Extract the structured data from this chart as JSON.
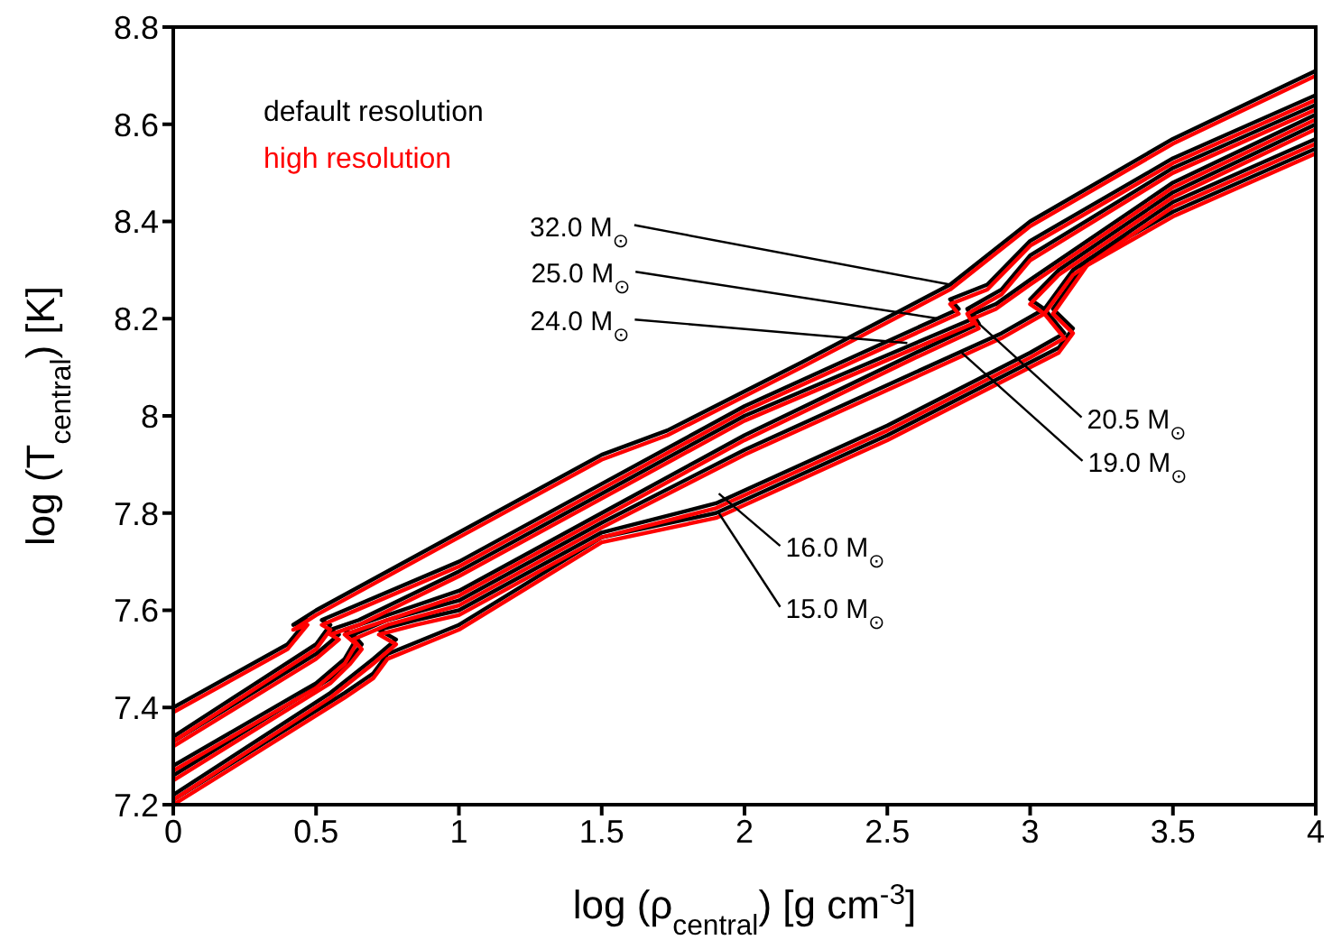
{
  "chart_data": {
    "type": "line",
    "xlabel": "log (ρ$_{central}$) [g cm$^{-3}$]",
    "ylabel": "log (T$_{central}$) [K]",
    "xlim": [
      0,
      4
    ],
    "xticks": [
      0,
      0.5,
      1,
      1.5,
      2,
      2.5,
      3,
      3.5,
      4
    ],
    "ylim": [
      7.2,
      8.8
    ],
    "yticks": [
      7.2,
      7.4,
      7.6,
      7.8,
      8,
      8.2,
      8.4,
      8.6,
      8.8
    ],
    "legend": "top left",
    "marker": "none",
    "line_style": "solid",
    "series": [
      {
        "name": "default resolution",
        "color": "#000000",
        "x": [
          0,
          0.4,
          0.47,
          0.42,
          0.5,
          1.0,
          1.5,
          1.73,
          2.2,
          2.72,
          3.0,
          3.5,
          4.0
        ],
        "values": [
          7.4,
          7.53,
          7.58,
          7.57,
          7.6,
          7.76,
          7.92,
          7.97,
          8.11,
          8.27,
          8.4,
          8.57,
          8.71
        ]
      },
      {
        "color": "#000000",
        "x": [
          0,
          0.5,
          0.55,
          0.52,
          0.6,
          1.0,
          1.5,
          2.0,
          2.75,
          2.72,
          2.85,
          3.0,
          3.5,
          4.0
        ],
        "values": [
          7.34,
          7.53,
          7.57,
          7.58,
          7.6,
          7.7,
          7.86,
          8.02,
          8.22,
          8.24,
          8.27,
          8.36,
          8.53,
          8.66
        ]
      },
      {
        "color": "#000000",
        "x": [
          0,
          0.5,
          0.58,
          0.55,
          0.65,
          1.0,
          1.5,
          2.0,
          2.8,
          2.78,
          2.9,
          3.0,
          3.5,
          4.0
        ],
        "values": [
          7.33,
          7.51,
          7.55,
          7.56,
          7.58,
          7.68,
          7.84,
          8.0,
          8.2,
          8.22,
          8.26,
          8.33,
          8.51,
          8.64
        ]
      },
      {
        "color": "#000000",
        "x": [
          0,
          0.5,
          0.6,
          0.64,
          0.6,
          0.7,
          1.0,
          1.5,
          2.0,
          2.6,
          2.82,
          2.8,
          2.88,
          3.0,
          3.5,
          4.0
        ],
        "values": [
          7.28,
          7.45,
          7.5,
          7.54,
          7.56,
          7.58,
          7.64,
          7.8,
          7.96,
          8.13,
          8.19,
          8.21,
          8.23,
          8.28,
          8.48,
          8.62
        ]
      },
      {
        "color": "#000000",
        "x": [
          0,
          0.55,
          0.62,
          0.66,
          0.63,
          0.75,
          1.0,
          1.5,
          2.0,
          2.6,
          2.9,
          3.05,
          3.0,
          3.1,
          3.5,
          4.0
        ],
        "values": [
          7.26,
          7.46,
          7.5,
          7.53,
          7.55,
          7.58,
          7.62,
          7.78,
          7.93,
          8.09,
          8.17,
          8.22,
          8.24,
          8.3,
          8.46,
          8.6
        ]
      },
      {
        "color": "#000000",
        "x": [
          0,
          0.55,
          0.7,
          0.78,
          0.72,
          0.85,
          1.0,
          1.5,
          1.9,
          2.5,
          3.0,
          3.12,
          3.05,
          3.15,
          3.5,
          4.0
        ],
        "values": [
          7.22,
          7.43,
          7.5,
          7.54,
          7.56,
          7.58,
          7.6,
          7.76,
          7.82,
          7.98,
          8.13,
          8.17,
          8.22,
          8.3,
          8.44,
          8.57
        ]
      },
      {
        "color": "#000000",
        "x": [
          0,
          0.6,
          0.7,
          0.75,
          1.0,
          1.5,
          1.9,
          2.5,
          3.1,
          3.15,
          3.08,
          3.2,
          3.5,
          4.0
        ],
        "values": [
          7.21,
          7.43,
          7.47,
          7.51,
          7.57,
          7.75,
          7.8,
          7.96,
          8.14,
          8.18,
          8.22,
          8.32,
          8.42,
          8.55
        ]
      },
      {
        "name": "high resolution",
        "color": "#ff0000",
        "x": [
          0,
          0.4,
          0.47,
          0.42,
          0.5,
          1.0,
          1.5,
          1.73,
          2.2,
          2.72,
          3.0,
          3.5,
          4.0
        ],
        "values": [
          7.39,
          7.52,
          7.57,
          7.56,
          7.59,
          7.75,
          7.91,
          7.96,
          8.1,
          8.26,
          8.39,
          8.56,
          8.7
        ]
      },
      {
        "color": "#ff0000",
        "x": [
          0,
          0.5,
          0.55,
          0.52,
          0.6,
          1.0,
          1.5,
          2.0,
          2.75,
          2.72,
          2.85,
          3.0,
          3.5,
          4.0
        ],
        "values": [
          7.33,
          7.52,
          7.56,
          7.57,
          7.59,
          7.69,
          7.85,
          8.01,
          8.21,
          8.23,
          8.26,
          8.35,
          8.52,
          8.65
        ]
      },
      {
        "color": "#ff0000",
        "x": [
          0,
          0.5,
          0.58,
          0.55,
          0.65,
          1.0,
          1.5,
          2.0,
          2.8,
          2.78,
          2.9,
          3.0,
          3.5,
          4.0
        ],
        "values": [
          7.32,
          7.5,
          7.54,
          7.55,
          7.57,
          7.67,
          7.83,
          7.99,
          8.19,
          8.21,
          8.25,
          8.32,
          8.5,
          8.63
        ]
      },
      {
        "color": "#ff0000",
        "x": [
          0,
          0.5,
          0.6,
          0.64,
          0.6,
          0.7,
          1.0,
          1.5,
          2.0,
          2.6,
          2.82,
          2.8,
          2.88,
          3.0,
          3.5,
          4.0
        ],
        "values": [
          7.27,
          7.44,
          7.49,
          7.53,
          7.55,
          7.57,
          7.63,
          7.79,
          7.95,
          8.12,
          8.18,
          8.2,
          8.22,
          8.27,
          8.47,
          8.61
        ]
      },
      {
        "color": "#ff0000",
        "x": [
          0,
          0.55,
          0.62,
          0.66,
          0.63,
          0.75,
          1.0,
          1.5,
          2.0,
          2.6,
          2.9,
          3.05,
          3.0,
          3.1,
          3.5,
          4.0
        ],
        "values": [
          7.25,
          7.45,
          7.49,
          7.52,
          7.54,
          7.57,
          7.61,
          7.77,
          7.92,
          8.08,
          8.16,
          8.21,
          8.23,
          8.29,
          8.45,
          8.59
        ]
      },
      {
        "color": "#ff0000",
        "x": [
          0,
          0.55,
          0.7,
          0.78,
          0.72,
          0.85,
          1.0,
          1.5,
          1.9,
          2.5,
          3.0,
          3.12,
          3.05,
          3.15,
          3.5,
          4.0
        ],
        "values": [
          7.21,
          7.42,
          7.49,
          7.53,
          7.55,
          7.57,
          7.59,
          7.75,
          7.81,
          7.97,
          8.12,
          8.16,
          8.21,
          8.29,
          8.43,
          8.56
        ]
      },
      {
        "color": "#ff0000",
        "x": [
          0,
          0.6,
          0.7,
          0.75,
          1.0,
          1.5,
          1.9,
          2.5,
          3.1,
          3.15,
          3.08,
          3.2,
          3.5,
          4.0
        ],
        "values": [
          7.2,
          7.42,
          7.46,
          7.5,
          7.56,
          7.74,
          7.79,
          7.95,
          8.13,
          8.17,
          8.21,
          8.31,
          8.41,
          8.54
        ]
      }
    ],
    "annotations": [
      {
        "text": "32.0 M$_{⊙}$",
        "x": 2.72,
        "y": 8.27
      },
      {
        "text": "25.0 M$_{⊙}$",
        "x": 2.68,
        "y": 8.2
      },
      {
        "text": "24.0 M$_{⊙}$",
        "x": 2.57,
        "y": 8.15
      },
      {
        "text": "20.5 M$_{⊙}$",
        "x": 2.82,
        "y": 8.19
      },
      {
        "text": "19.0 M$_{⊙}$",
        "x": 2.76,
        "y": 8.13
      },
      {
        "text": "16.0 M$_{⊙}$",
        "x": 1.91,
        "y": 7.84
      },
      {
        "text": "15.0 M$_{⊙}$",
        "x": 1.91,
        "y": 7.8
      }
    ]
  }
}
